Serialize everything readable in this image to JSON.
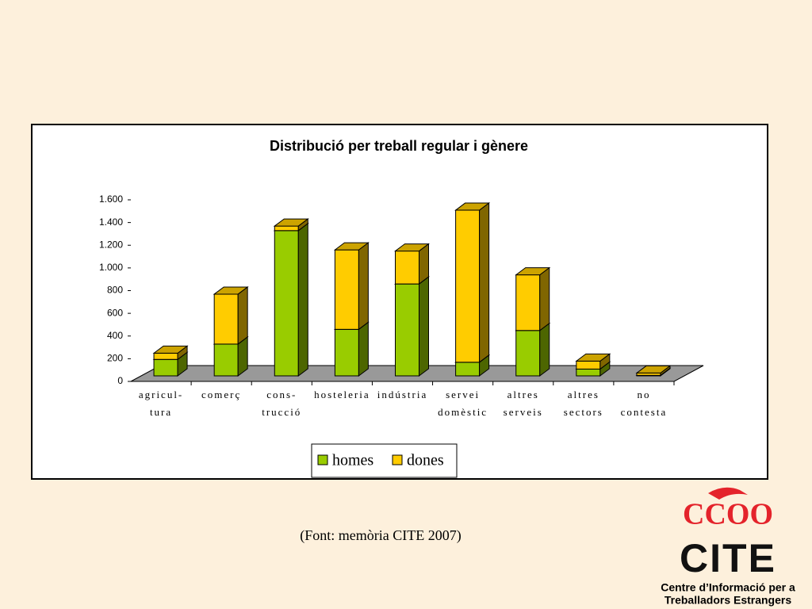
{
  "chart_data": {
    "type": "bar3d_stacked",
    "title": "Distribució per treball regular i gènere",
    "categories": [
      [
        "agricul-",
        "tura"
      ],
      [
        "comerç"
      ],
      [
        "cons-",
        "trucció"
      ],
      [
        "hosteleria"
      ],
      [
        "indústria"
      ],
      [
        "servei",
        "domèstic"
      ],
      [
        "altres",
        "serveis"
      ],
      [
        "altres",
        "sectors"
      ],
      [
        "no",
        "contesta"
      ]
    ],
    "series": [
      {
        "name": "homes",
        "color": "#99cc00",
        "values": [
          145,
          280,
          1280,
          410,
          810,
          120,
          400,
          60,
          5
        ]
      },
      {
        "name": "dones",
        "color": "#ffcc00",
        "values": [
          55,
          440,
          40,
          700,
          290,
          1340,
          490,
          70,
          20
        ]
      }
    ],
    "ylim": [
      0,
      1600
    ],
    "yticks": [
      0,
      200,
      400,
      600,
      800,
      {
        "value": 1000,
        "label": "1.000"
      },
      {
        "value": 1200,
        "label": "1.200"
      },
      {
        "value": 1400,
        "label": "1.400"
      },
      {
        "value": 1600,
        "label": "1.600"
      }
    ],
    "legend": "bottom"
  },
  "footer": {
    "source": "(Font: memòria CITE 2007)",
    "logo_top": "CCOO",
    "logo_main": "CITE",
    "org_line1": "Centre d’Informació per a",
    "org_line2": "Treballadors Estrangers"
  }
}
